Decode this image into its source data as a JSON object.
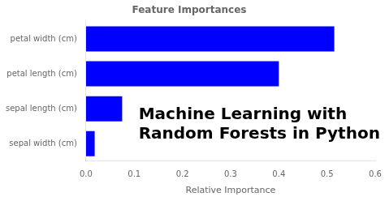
{
  "chart_data": {
    "type": "bar",
    "orientation": "horizontal",
    "title": "Feature Importances",
    "x_label": "Relative Importance",
    "categories": [
      "sepal width (cm)",
      "sepal length (cm)",
      "petal length (cm)",
      "petal width (cm)"
    ],
    "values": [
      0.018,
      0.075,
      0.4,
      0.515
    ],
    "color": "blue",
    "xlim": [
      0,
      0.6
    ],
    "xticks": [
      {
        "value": 0,
        "label": "0.0"
      },
      0.1,
      0.2,
      0.3,
      0.4,
      0.5,
      0.6
    ],
    "grid": false,
    "annotation": "Machine Learning with\nRandom Forests in Python"
  }
}
